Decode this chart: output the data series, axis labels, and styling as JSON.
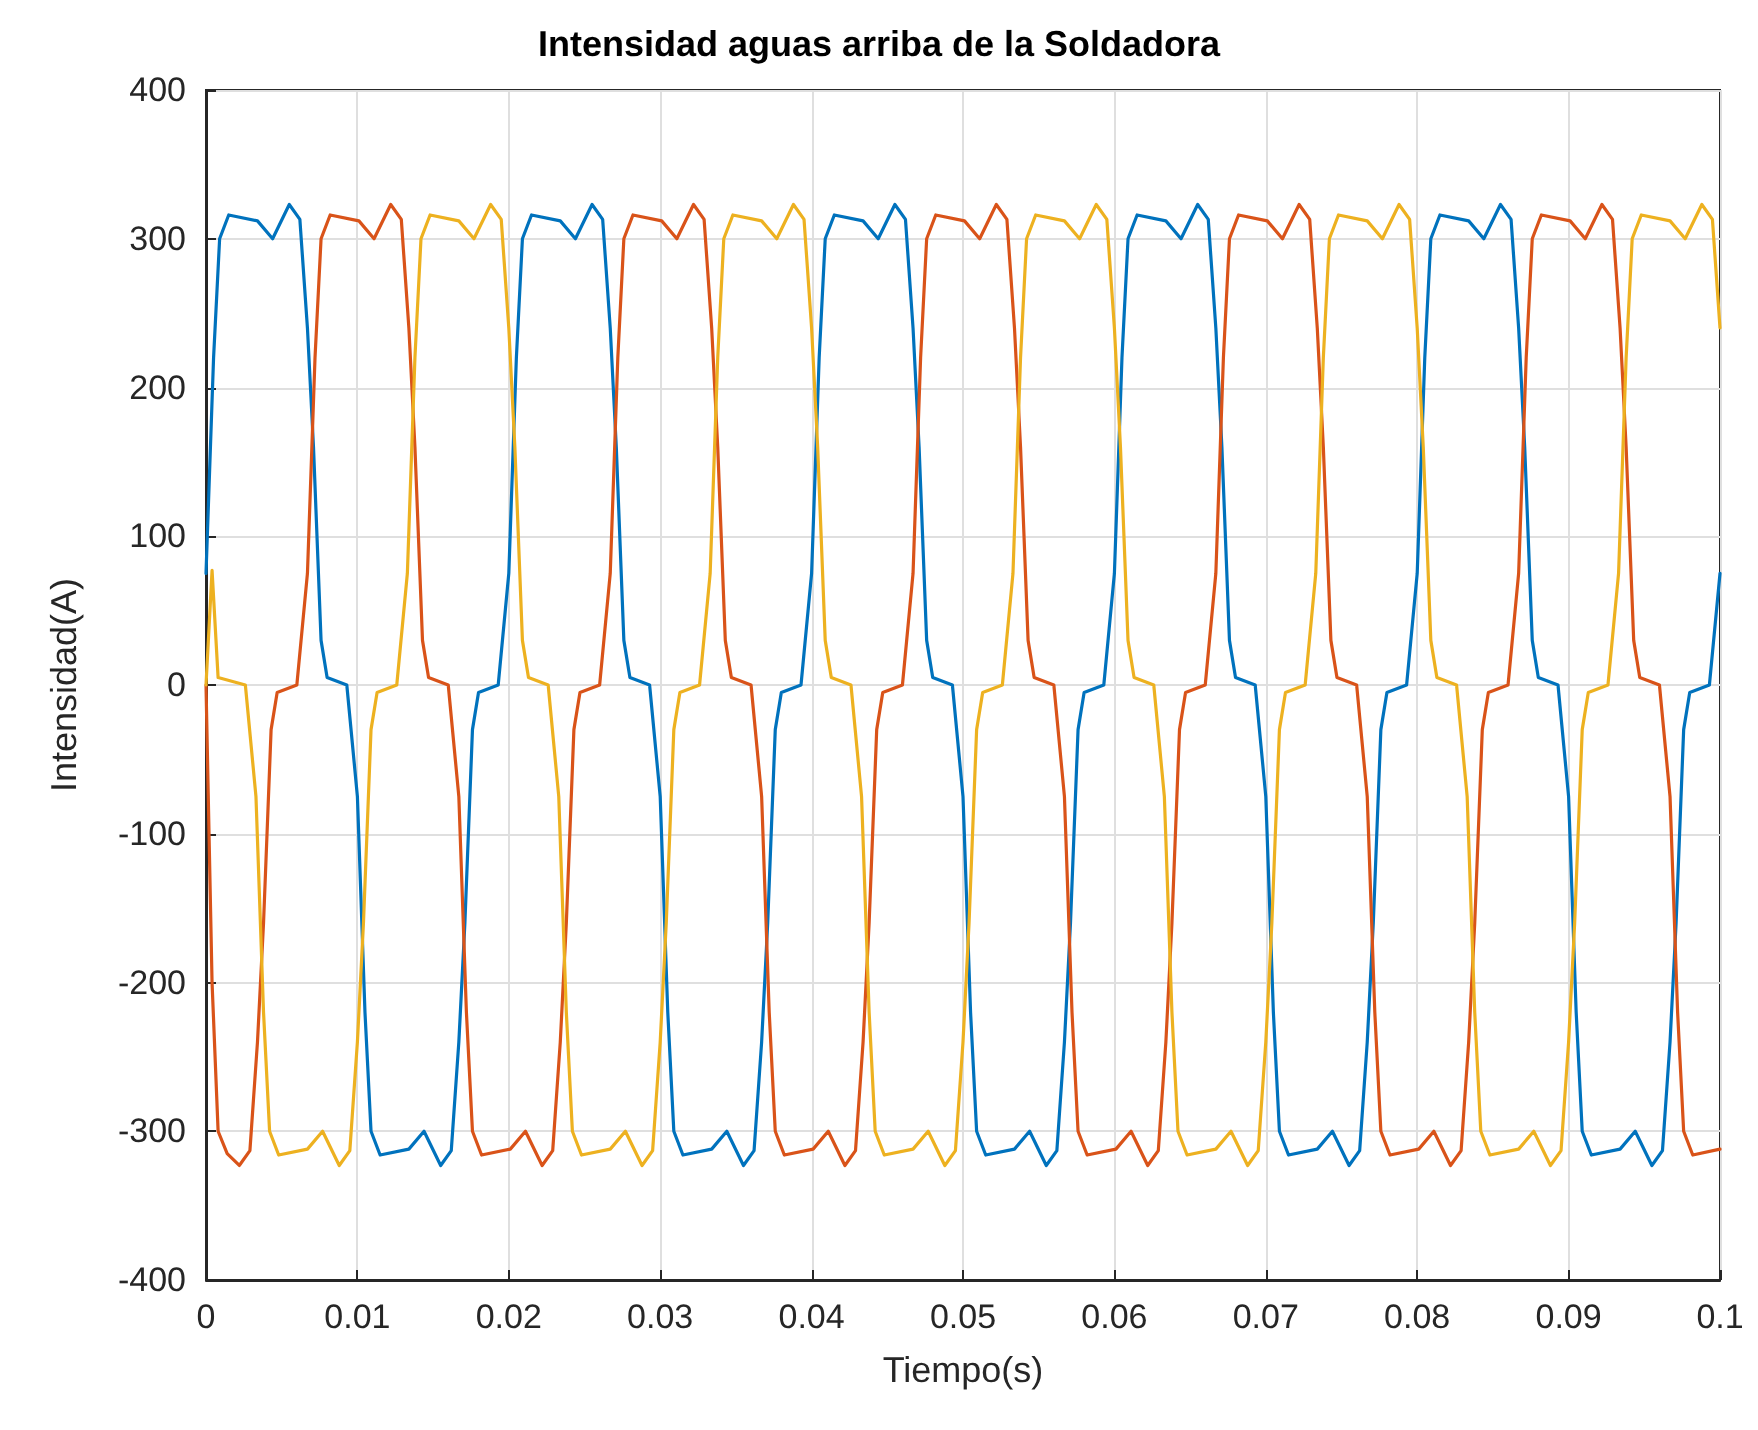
{
  "chart_data": {
    "type": "line",
    "title": "Intensidad aguas arriba de la Soldadora",
    "xlabel": "Tiempo(s)",
    "ylabel": "Intensidad(A)",
    "xlim": [
      0,
      0.1
    ],
    "xticks": [
      0,
      0.01,
      0.02,
      0.03,
      0.04,
      0.05,
      0.06,
      0.07,
      0.08,
      0.09,
      0.1
    ],
    "ylim": [
      -400,
      400
    ],
    "yticks": [
      -400,
      -300,
      -200,
      -100,
      0,
      100,
      200,
      300,
      400
    ],
    "grid": true,
    "marker": "none",
    "line_style": "solid",
    "series": [
      {
        "color": "#0072bd",
        "x": [
          0,
          0.0005,
          0.0009,
          0.0015,
          0.0034,
          0.0044,
          0.0055,
          0.0062,
          0.0067,
          0.0071,
          0.0076,
          0.008,
          0.0093,
          0.01,
          0.0105,
          0.0109,
          0.0115,
          0.0134,
          0.0144,
          0.0155,
          0.0162,
          0.0167,
          0.0171,
          0.0176,
          0.018,
          0.0193,
          0.02,
          0.0205,
          0.0209,
          0.0215,
          0.0234,
          0.0244,
          0.0255,
          0.0262,
          0.0267,
          0.0271,
          0.0276,
          0.028,
          0.0293,
          0.03,
          0.0305,
          0.0309,
          0.0315,
          0.0334,
          0.0344,
          0.0355,
          0.0362,
          0.0367,
          0.0371,
          0.0376,
          0.038,
          0.0393,
          0.04,
          0.0405,
          0.0409,
          0.0415,
          0.0434,
          0.0444,
          0.0455,
          0.0462,
          0.0467,
          0.0471,
          0.0476,
          0.048,
          0.0493,
          0.05,
          0.0505,
          0.0509,
          0.0515,
          0.0534,
          0.0544,
          0.0555,
          0.0562,
          0.0567,
          0.0571,
          0.0576,
          0.058,
          0.0593,
          0.06,
          0.0605,
          0.0609,
          0.0615,
          0.0634,
          0.0644,
          0.0655,
          0.0662,
          0.0667,
          0.0671,
          0.0676,
          0.068,
          0.0693,
          0.07,
          0.0705,
          0.0709,
          0.0715,
          0.0734,
          0.0744,
          0.0755,
          0.0762,
          0.0767,
          0.0771,
          0.0776,
          0.078,
          0.0793,
          0.08,
          0.0805,
          0.0809,
          0.0815,
          0.0834,
          0.0844,
          0.0855,
          0.0862,
          0.0867,
          0.0871,
          0.0876,
          0.088,
          0.0893,
          0.09,
          0.0905,
          0.0909,
          0.0915,
          0.0934,
          0.0944,
          0.0955,
          0.0962,
          0.0967,
          0.0971,
          0.0976,
          0.098,
          0.0993,
          0.1
        ],
        "values": [
          75,
          220,
          300,
          316,
          312,
          300,
          323,
          313,
          240,
          160,
          30,
          5,
          0,
          -75,
          -220,
          -300,
          -316,
          -312,
          -300,
          -323,
          -313,
          -240,
          -160,
          -30,
          -5,
          0,
          75,
          220,
          300,
          316,
          312,
          300,
          323,
          313,
          240,
          160,
          30,
          5,
          0,
          -75,
          -220,
          -300,
          -316,
          -312,
          -300,
          -323,
          -313,
          -240,
          -160,
          -30,
          -5,
          0,
          75,
          220,
          300,
          316,
          312,
          300,
          323,
          313,
          240,
          160,
          30,
          5,
          0,
          -75,
          -220,
          -300,
          -316,
          -312,
          -300,
          -323,
          -313,
          -240,
          -160,
          -30,
          -5,
          0,
          75,
          220,
          300,
          316,
          312,
          300,
          323,
          313,
          240,
          160,
          30,
          5,
          0,
          -75,
          -220,
          -300,
          -316,
          -312,
          -300,
          -323,
          -313,
          -240,
          -160,
          -30,
          -5,
          0,
          75,
          220,
          300,
          316,
          312,
          300,
          323,
          313,
          240,
          160,
          30,
          5,
          0,
          -75,
          -220,
          -300,
          -316,
          -312,
          -300,
          -323,
          -313,
          -240,
          -160,
          -30,
          -5,
          0,
          75
        ]
      },
      {
        "color": "#d95319",
        "x": [
          0,
          0.0004,
          0.0008,
          0.0014,
          0.0022,
          0.0029,
          0.0034,
          0.0038,
          0.0043,
          0.0047,
          0.006,
          0.0067,
          0.0072,
          0.0076,
          0.0082,
          0.0101,
          0.0111,
          0.0122,
          0.0129,
          0.0134,
          0.0138,
          0.0143,
          0.0147,
          0.016,
          0.0167,
          0.0172,
          0.0176,
          0.0182,
          0.0201,
          0.0211,
          0.0222,
          0.0229,
          0.0234,
          0.0238,
          0.0243,
          0.0247,
          0.026,
          0.0267,
          0.0272,
          0.0276,
          0.0282,
          0.0301,
          0.0311,
          0.0322,
          0.0329,
          0.0334,
          0.0338,
          0.0343,
          0.0347,
          0.036,
          0.0367,
          0.0372,
          0.0376,
          0.0382,
          0.0401,
          0.0411,
          0.0422,
          0.0429,
          0.0434,
          0.0438,
          0.0443,
          0.0447,
          0.046,
          0.0467,
          0.0472,
          0.0476,
          0.0482,
          0.0501,
          0.0511,
          0.0522,
          0.0529,
          0.0534,
          0.0538,
          0.0543,
          0.0547,
          0.056,
          0.0567,
          0.0572,
          0.0576,
          0.0582,
          0.0601,
          0.0611,
          0.0622,
          0.0629,
          0.0634,
          0.0638,
          0.0643,
          0.0647,
          0.066,
          0.0667,
          0.0672,
          0.0676,
          0.0682,
          0.0701,
          0.0711,
          0.0722,
          0.0729,
          0.0734,
          0.0738,
          0.0743,
          0.0747,
          0.076,
          0.0767,
          0.0772,
          0.0776,
          0.0782,
          0.0801,
          0.0811,
          0.0822,
          0.0829,
          0.0834,
          0.0838,
          0.0843,
          0.0847,
          0.086,
          0.0867,
          0.0872,
          0.0876,
          0.0882,
          0.0901,
          0.0911,
          0.0922,
          0.0929,
          0.0934,
          0.0938,
          0.0943,
          0.0947,
          0.096,
          0.0967,
          0.0972,
          0.0976,
          0.0982,
          0.1
        ],
        "values": [
          0,
          -200,
          -300,
          -315,
          -323,
          -313,
          -240,
          -160,
          -30,
          -5,
          0,
          75,
          220,
          300,
          316,
          312,
          300,
          323,
          313,
          240,
          160,
          30,
          5,
          0,
          -75,
          -220,
          -300,
          -316,
          -312,
          -300,
          -323,
          -313,
          -240,
          -160,
          -30,
          -5,
          0,
          75,
          220,
          300,
          316,
          312,
          300,
          323,
          313,
          240,
          160,
          30,
          5,
          0,
          -75,
          -220,
          -300,
          -316,
          -312,
          -300,
          -323,
          -313,
          -240,
          -160,
          -30,
          -5,
          0,
          75,
          220,
          300,
          316,
          312,
          300,
          323,
          313,
          240,
          160,
          30,
          5,
          0,
          -75,
          -220,
          -300,
          -316,
          -312,
          -300,
          -323,
          -313,
          -240,
          -160,
          -30,
          -5,
          0,
          75,
          220,
          300,
          316,
          312,
          300,
          323,
          313,
          240,
          160,
          30,
          5,
          0,
          -75,
          -220,
          -300,
          -316,
          -312,
          -300,
          -323,
          -313,
          -240,
          -160,
          -30,
          -5,
          0,
          75,
          220,
          300,
          316,
          312,
          300,
          323,
          313,
          240,
          160,
          30,
          5,
          0,
          -75,
          -220,
          -300,
          -316,
          -312
        ]
      },
      {
        "color": "#edb120",
        "x": [
          0,
          0.0004,
          0.0008,
          0.0026,
          0.0033,
          0.0038,
          0.0042,
          0.0048,
          0.0067,
          0.0077,
          0.0088,
          0.0095,
          0.01,
          0.0104,
          0.0109,
          0.0113,
          0.0126,
          0.0133,
          0.0138,
          0.0142,
          0.0148,
          0.0167,
          0.0177,
          0.0188,
          0.0195,
          0.02,
          0.0204,
          0.0209,
          0.0213,
          0.0226,
          0.0233,
          0.0238,
          0.0242,
          0.0248,
          0.0267,
          0.0277,
          0.0288,
          0.0295,
          0.03,
          0.0304,
          0.0309,
          0.0313,
          0.0326,
          0.0333,
          0.0338,
          0.0342,
          0.0348,
          0.0367,
          0.0377,
          0.0388,
          0.0395,
          0.04,
          0.0404,
          0.0409,
          0.0413,
          0.0426,
          0.0433,
          0.0438,
          0.0442,
          0.0448,
          0.0467,
          0.0477,
          0.0488,
          0.0495,
          0.05,
          0.0504,
          0.0509,
          0.0513,
          0.0526,
          0.0533,
          0.0538,
          0.0542,
          0.0548,
          0.0567,
          0.0577,
          0.0588,
          0.0595,
          0.06,
          0.0604,
          0.0609,
          0.0613,
          0.0626,
          0.0633,
          0.0638,
          0.0642,
          0.0648,
          0.0667,
          0.0677,
          0.0688,
          0.0695,
          0.07,
          0.0704,
          0.0709,
          0.0713,
          0.0726,
          0.0733,
          0.0738,
          0.0742,
          0.0748,
          0.0767,
          0.0777,
          0.0788,
          0.0795,
          0.08,
          0.0804,
          0.0809,
          0.0813,
          0.0826,
          0.0833,
          0.0838,
          0.0842,
          0.0848,
          0.0867,
          0.0877,
          0.0888,
          0.0895,
          0.09,
          0.0904,
          0.0909,
          0.0913,
          0.0926,
          0.0933,
          0.0938,
          0.0942,
          0.0948,
          0.0967,
          0.0977,
          0.0988,
          0.0995,
          0.1
        ],
        "values": [
          0,
          77,
          5,
          0,
          -75,
          -220,
          -300,
          -316,
          -312,
          -300,
          -323,
          -313,
          -240,
          -160,
          -30,
          -5,
          0,
          75,
          220,
          300,
          316,
          312,
          300,
          323,
          313,
          240,
          160,
          30,
          5,
          0,
          -75,
          -220,
          -300,
          -316,
          -312,
          -300,
          -323,
          -313,
          -240,
          -160,
          -30,
          -5,
          0,
          75,
          220,
          300,
          316,
          312,
          300,
          323,
          313,
          240,
          160,
          30,
          5,
          0,
          -75,
          -220,
          -300,
          -316,
          -312,
          -300,
          -323,
          -313,
          -240,
          -160,
          -30,
          -5,
          0,
          75,
          220,
          300,
          316,
          312,
          300,
          323,
          313,
          240,
          160,
          30,
          5,
          0,
          -75,
          -220,
          -300,
          -316,
          -312,
          -300,
          -323,
          -313,
          -240,
          -160,
          -30,
          -5,
          0,
          75,
          220,
          300,
          316,
          312,
          300,
          323,
          313,
          240,
          160,
          30,
          5,
          0,
          -75,
          -220,
          -300,
          -316,
          -312,
          -300,
          -323,
          -313,
          -240,
          -160,
          -30,
          -5,
          0,
          75,
          220,
          300,
          316,
          312,
          300,
          323,
          313,
          240
        ]
      }
    ]
  }
}
